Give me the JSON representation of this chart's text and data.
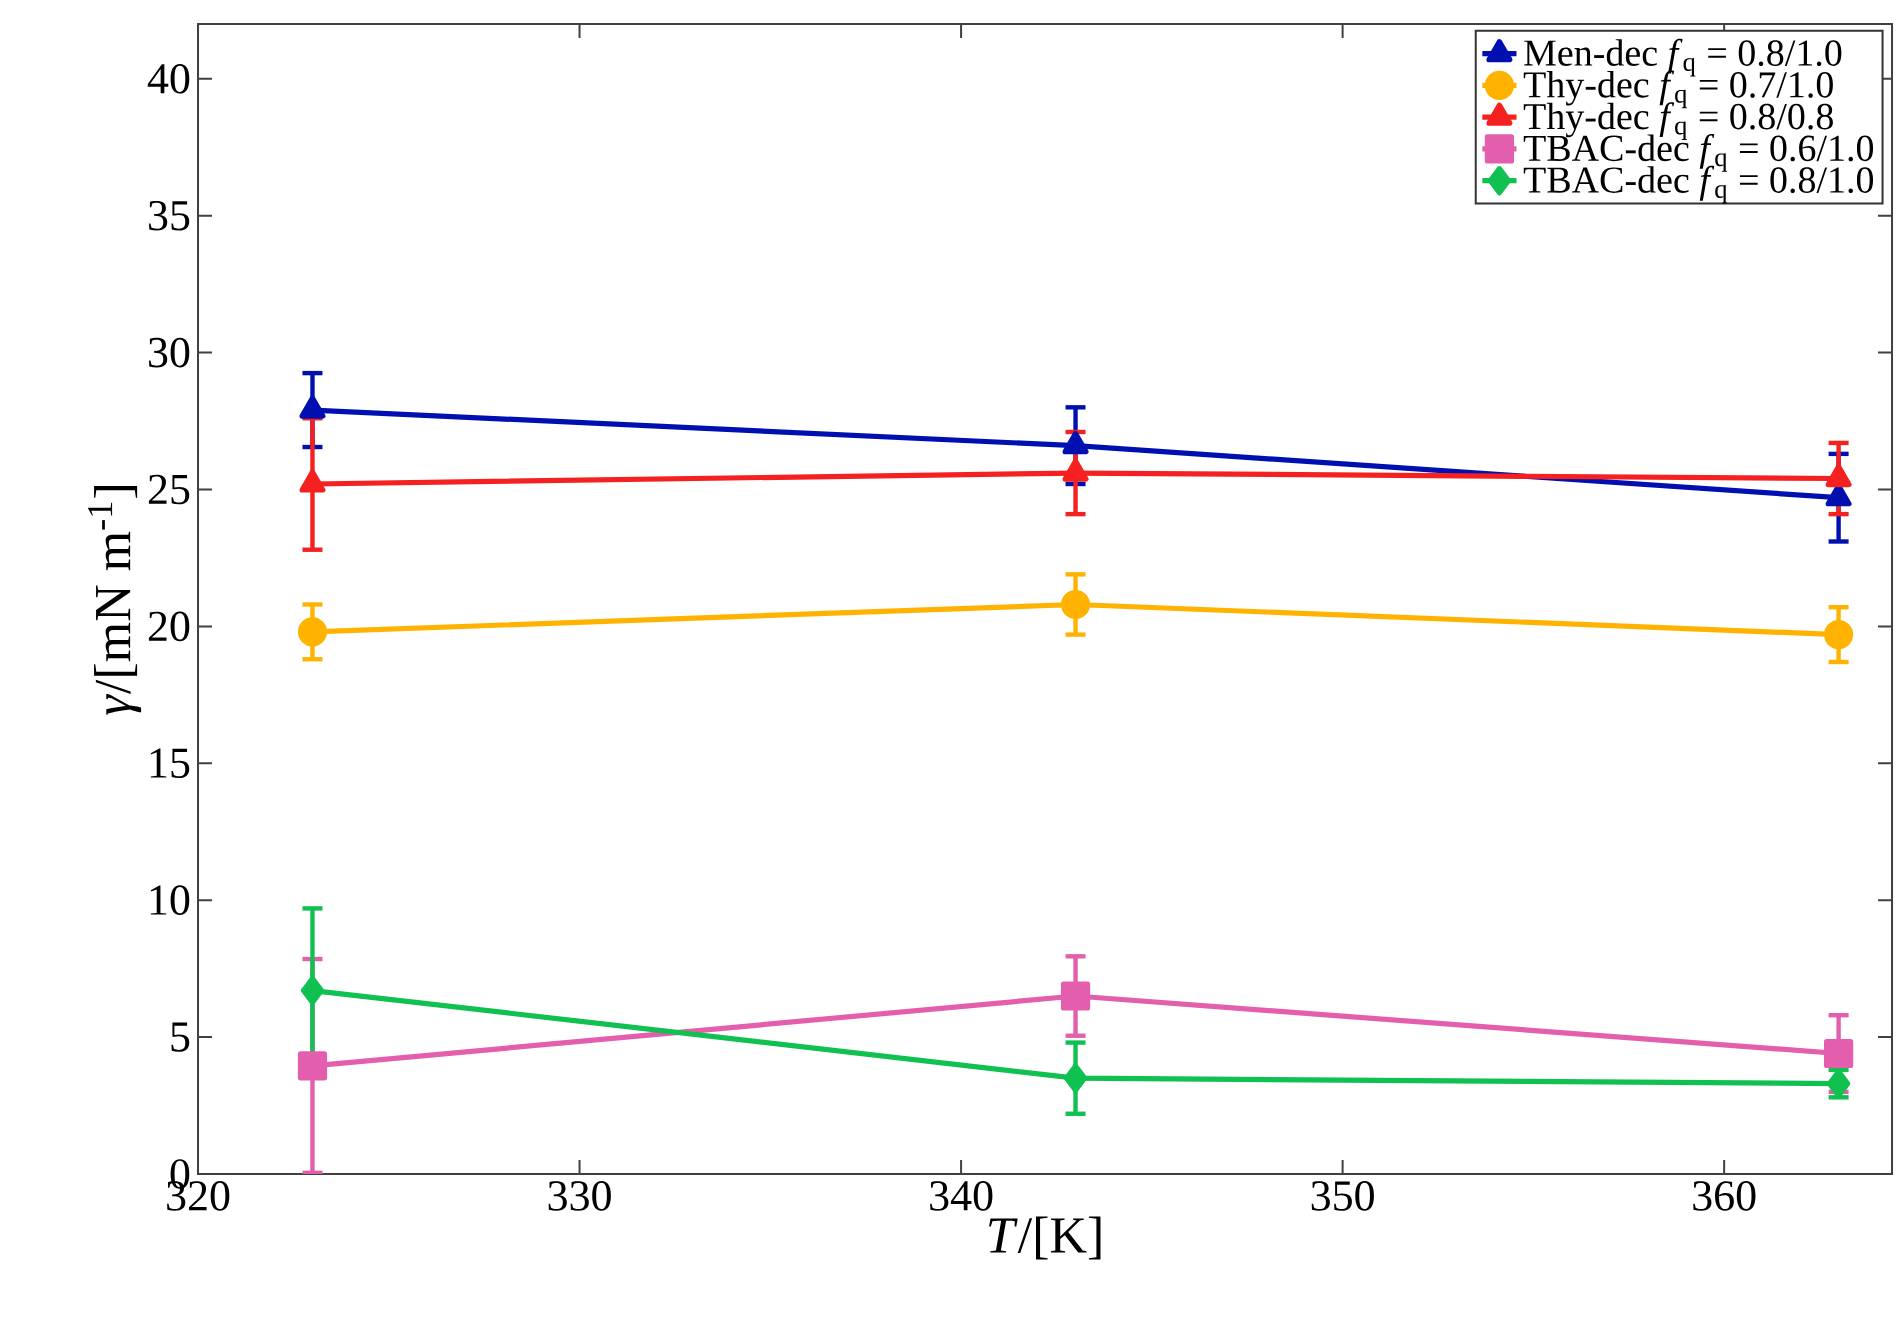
{
  "chart_data": {
    "type": "line",
    "xlabel": "*T*/[K]",
    "ylabel": "*γ*/[mN m$^{-1}$]",
    "x": [
      323,
      343,
      363
    ],
    "series": [
      {
        "name": "Men-dec   *f*$_{q}$ = 0.8/1.0",
        "color": "#0010b0",
        "marker": "triangle",
        "values": [
          27.9,
          26.6,
          24.7
        ],
        "errors": [
          1.35,
          1.4,
          1.6
        ]
      },
      {
        "name": "Thy-dec   *f*$_{q}$ = 0.7/1.0",
        "color": "#ffb300",
        "marker": "circle",
        "values": [
          19.8,
          20.8,
          19.7
        ],
        "errors": [
          1.0,
          1.1,
          1.0
        ]
      },
      {
        "name": "Thy-dec   *f*$_{q}$ = 0.8/0.8",
        "color": "#f52020",
        "marker": "triangle",
        "values": [
          25.2,
          25.6,
          25.4
        ],
        "errors": [
          2.4,
          1.5,
          1.3
        ]
      },
      {
        "name": "TBAC-dec   *f*$_{q}$ = 0.6/1.0",
        "color": "#e35fae",
        "marker": "square",
        "values": [
          3.95,
          6.5,
          4.4
        ],
        "errors": [
          3.9,
          1.45,
          1.4
        ]
      },
      {
        "name": "TBAC-dec   *f*$_{q}$ = 0.8/1.0",
        "color": "#10c050",
        "marker": "diamond",
        "values": [
          6.7,
          3.5,
          3.3
        ],
        "errors": [
          3.0,
          1.3,
          0.5
        ]
      }
    ],
    "xlim": [
      320,
      364.4
    ],
    "ylim": [
      0,
      42
    ],
    "xticks": [
      320,
      330,
      340,
      350,
      360
    ],
    "yticks": [
      0,
      5,
      10,
      15,
      20,
      25,
      30,
      35,
      40
    ],
    "grid": false,
    "legend": "top right",
    "line_style": "solid"
  }
}
